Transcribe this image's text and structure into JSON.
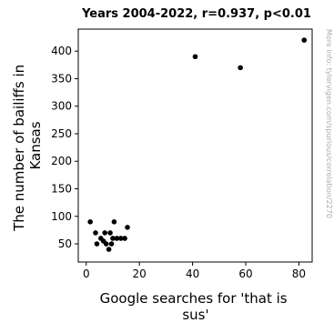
{
  "chart_data": {
    "type": "scatter",
    "title": "Years 2004-2022, r=0.937, p<0.01",
    "xlabel_lines": [
      "Google searches for 'that is",
      "sus'"
    ],
    "ylabel_lines": [
      "The number of bailiffs in",
      "Kansas"
    ],
    "xlim": [
      -3,
      85
    ],
    "ylim": [
      17,
      440
    ],
    "x_ticks": [
      0,
      20,
      40,
      60,
      80
    ],
    "y_ticks": [
      50,
      100,
      150,
      200,
      250,
      300,
      350,
      400
    ],
    "grid": false,
    "marker_color": "#000000",
    "points": [
      {
        "x": 1.5,
        "y": 90
      },
      {
        "x": 3.5,
        "y": 70
      },
      {
        "x": 4,
        "y": 50
      },
      {
        "x": 5.5,
        "y": 60
      },
      {
        "x": 6.5,
        "y": 55
      },
      {
        "x": 7,
        "y": 70
      },
      {
        "x": 7.5,
        "y": 50
      },
      {
        "x": 8.5,
        "y": 40
      },
      {
        "x": 9,
        "y": 70
      },
      {
        "x": 9.5,
        "y": 50
      },
      {
        "x": 10,
        "y": 60
      },
      {
        "x": 10.5,
        "y": 90
      },
      {
        "x": 11.5,
        "y": 60
      },
      {
        "x": 13,
        "y": 60
      },
      {
        "x": 14.5,
        "y": 60
      },
      {
        "x": 15.5,
        "y": 80
      },
      {
        "x": 41,
        "y": 390
      },
      {
        "x": 58,
        "y": 370
      },
      {
        "x": 82,
        "y": 420
      }
    ]
  },
  "side_note": "More info: tylervigen.com/spurious/correlation/2270"
}
